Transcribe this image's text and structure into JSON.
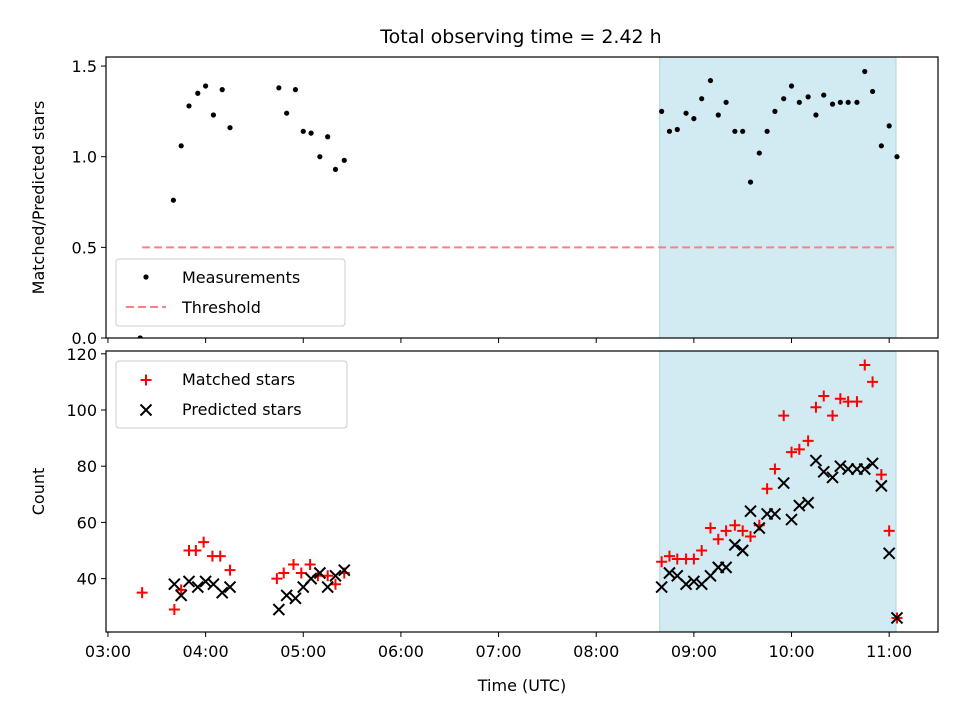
{
  "title": "Total observing time = 2.42 h",
  "chart_data": [
    {
      "type": "scatter",
      "ylabel": "Matched/Predicted stars",
      "ylim": [
        0,
        1.55
      ],
      "yticks": [
        0.0,
        0.5,
        1.0,
        1.5
      ],
      "ytick_labels": [
        "0.0",
        "0.5",
        "1.0",
        "1.5"
      ],
      "xlim": [
        2.98,
        11.5
      ],
      "shaded_region": {
        "x_start": 8.65,
        "x_end": 11.07,
        "color": "#add8e6"
      },
      "threshold": {
        "name": "Threshold",
        "y": 0.5,
        "x_start": 3.35,
        "x_end": 11.07,
        "color": "#ff7f7f"
      },
      "series": [
        {
          "name": "Measurements",
          "color": "#000000",
          "marker": "dot",
          "x": [
            3.33,
            3.67,
            3.75,
            3.83,
            3.92,
            4.0,
            4.08,
            4.17,
            4.25,
            4.75,
            4.83,
            4.92,
            5.0,
            5.08,
            5.17,
            5.25,
            5.33,
            5.42,
            8.67,
            8.75,
            8.83,
            8.92,
            9.0,
            9.08,
            9.17,
            9.25,
            9.33,
            9.42,
            9.5,
            9.58,
            9.67,
            9.75,
            9.83,
            9.92,
            10.0,
            10.08,
            10.17,
            10.25,
            10.33,
            10.42,
            10.5,
            10.58,
            10.67,
            10.75,
            10.83,
            10.92,
            11.0,
            11.08
          ],
          "y": [
            0.0,
            0.76,
            1.06,
            1.28,
            1.35,
            1.39,
            1.23,
            1.37,
            1.16,
            1.38,
            1.24,
            1.37,
            1.14,
            1.13,
            1.0,
            1.11,
            0.93,
            0.98,
            1.25,
            1.14,
            1.15,
            1.24,
            1.21,
            1.32,
            1.42,
            1.23,
            1.3,
            1.14,
            1.14,
            0.86,
            1.02,
            1.14,
            1.25,
            1.32,
            1.39,
            1.3,
            1.33,
            1.23,
            1.34,
            1.29,
            1.3,
            1.3,
            1.3,
            1.47,
            1.36,
            1.06,
            1.17,
            1.0
          ]
        }
      ],
      "legend": {
        "placement": "lower-left",
        "entries": [
          "Measurements",
          "Threshold"
        ]
      }
    },
    {
      "type": "scatter",
      "xlabel": "Time (UTC)",
      "ylabel": "Count",
      "ylim": [
        21,
        121
      ],
      "yticks": [
        40,
        60,
        80,
        100,
        120
      ],
      "ytick_labels": [
        "40",
        "60",
        "80",
        "100",
        "120"
      ],
      "xlim": [
        2.98,
        11.5
      ],
      "xticks": [
        3,
        4,
        5,
        6,
        7,
        8,
        9,
        10,
        11
      ],
      "xtick_labels": [
        "03:00",
        "04:00",
        "05:00",
        "06:00",
        "07:00",
        "08:00",
        "09:00",
        "10:00",
        "11:00"
      ],
      "shaded_region": {
        "x_start": 8.65,
        "x_end": 11.07,
        "color": "#add8e6"
      },
      "series": [
        {
          "name": "Matched stars",
          "color": "#ff0000",
          "marker": "plus",
          "x": [
            3.35,
            3.68,
            3.75,
            3.83,
            3.9,
            3.98,
            4.07,
            4.15,
            4.25,
            4.73,
            4.8,
            4.9,
            4.98,
            5.07,
            5.15,
            5.25,
            5.33,
            5.42,
            8.67,
            8.75,
            8.83,
            8.92,
            9.0,
            9.08,
            9.17,
            9.25,
            9.33,
            9.42,
            9.5,
            9.58,
            9.67,
            9.75,
            9.83,
            9.92,
            10.0,
            10.08,
            10.17,
            10.25,
            10.33,
            10.42,
            10.5,
            10.58,
            10.67,
            10.75,
            10.83,
            10.92,
            11.0,
            11.08
          ],
          "y": [
            35,
            29,
            36,
            50,
            50,
            53,
            48,
            48,
            43,
            40,
            42,
            45,
            42,
            45,
            41,
            41,
            38,
            42,
            46,
            48,
            47,
            47,
            47,
            50,
            58,
            54,
            57,
            59,
            57,
            55,
            59,
            72,
            79,
            98,
            85,
            86,
            89,
            101,
            105,
            98,
            104,
            103,
            103,
            116,
            110,
            77,
            57,
            26
          ]
        },
        {
          "name": "Predicted stars",
          "color": "#000000",
          "marker": "x",
          "x": [
            3.68,
            3.75,
            3.83,
            3.92,
            4.0,
            4.08,
            4.17,
            4.25,
            4.75,
            4.83,
            4.92,
            5.0,
            5.08,
            5.17,
            5.25,
            5.33,
            5.42,
            8.67,
            8.75,
            8.83,
            8.92,
            9.0,
            9.08,
            9.17,
            9.25,
            9.33,
            9.42,
            9.5,
            9.58,
            9.67,
            9.75,
            9.83,
            9.92,
            10.0,
            10.08,
            10.17,
            10.25,
            10.33,
            10.42,
            10.5,
            10.58,
            10.67,
            10.75,
            10.83,
            10.92,
            11.0,
            11.08
          ],
          "y": [
            38,
            34,
            39,
            37,
            39,
            38,
            35,
            37,
            29,
            34,
            33,
            37,
            40,
            42,
            37,
            41,
            43,
            37,
            42,
            41,
            38,
            39,
            38,
            41,
            44,
            44,
            52,
            50,
            64,
            58,
            63,
            63,
            74,
            61,
            66,
            67,
            82,
            78,
            76,
            80,
            79,
            79,
            79,
            81,
            73,
            49,
            26
          ]
        }
      ],
      "legend": {
        "placement": "upper-left",
        "entries": [
          "Matched stars",
          "Predicted stars"
        ]
      }
    }
  ]
}
